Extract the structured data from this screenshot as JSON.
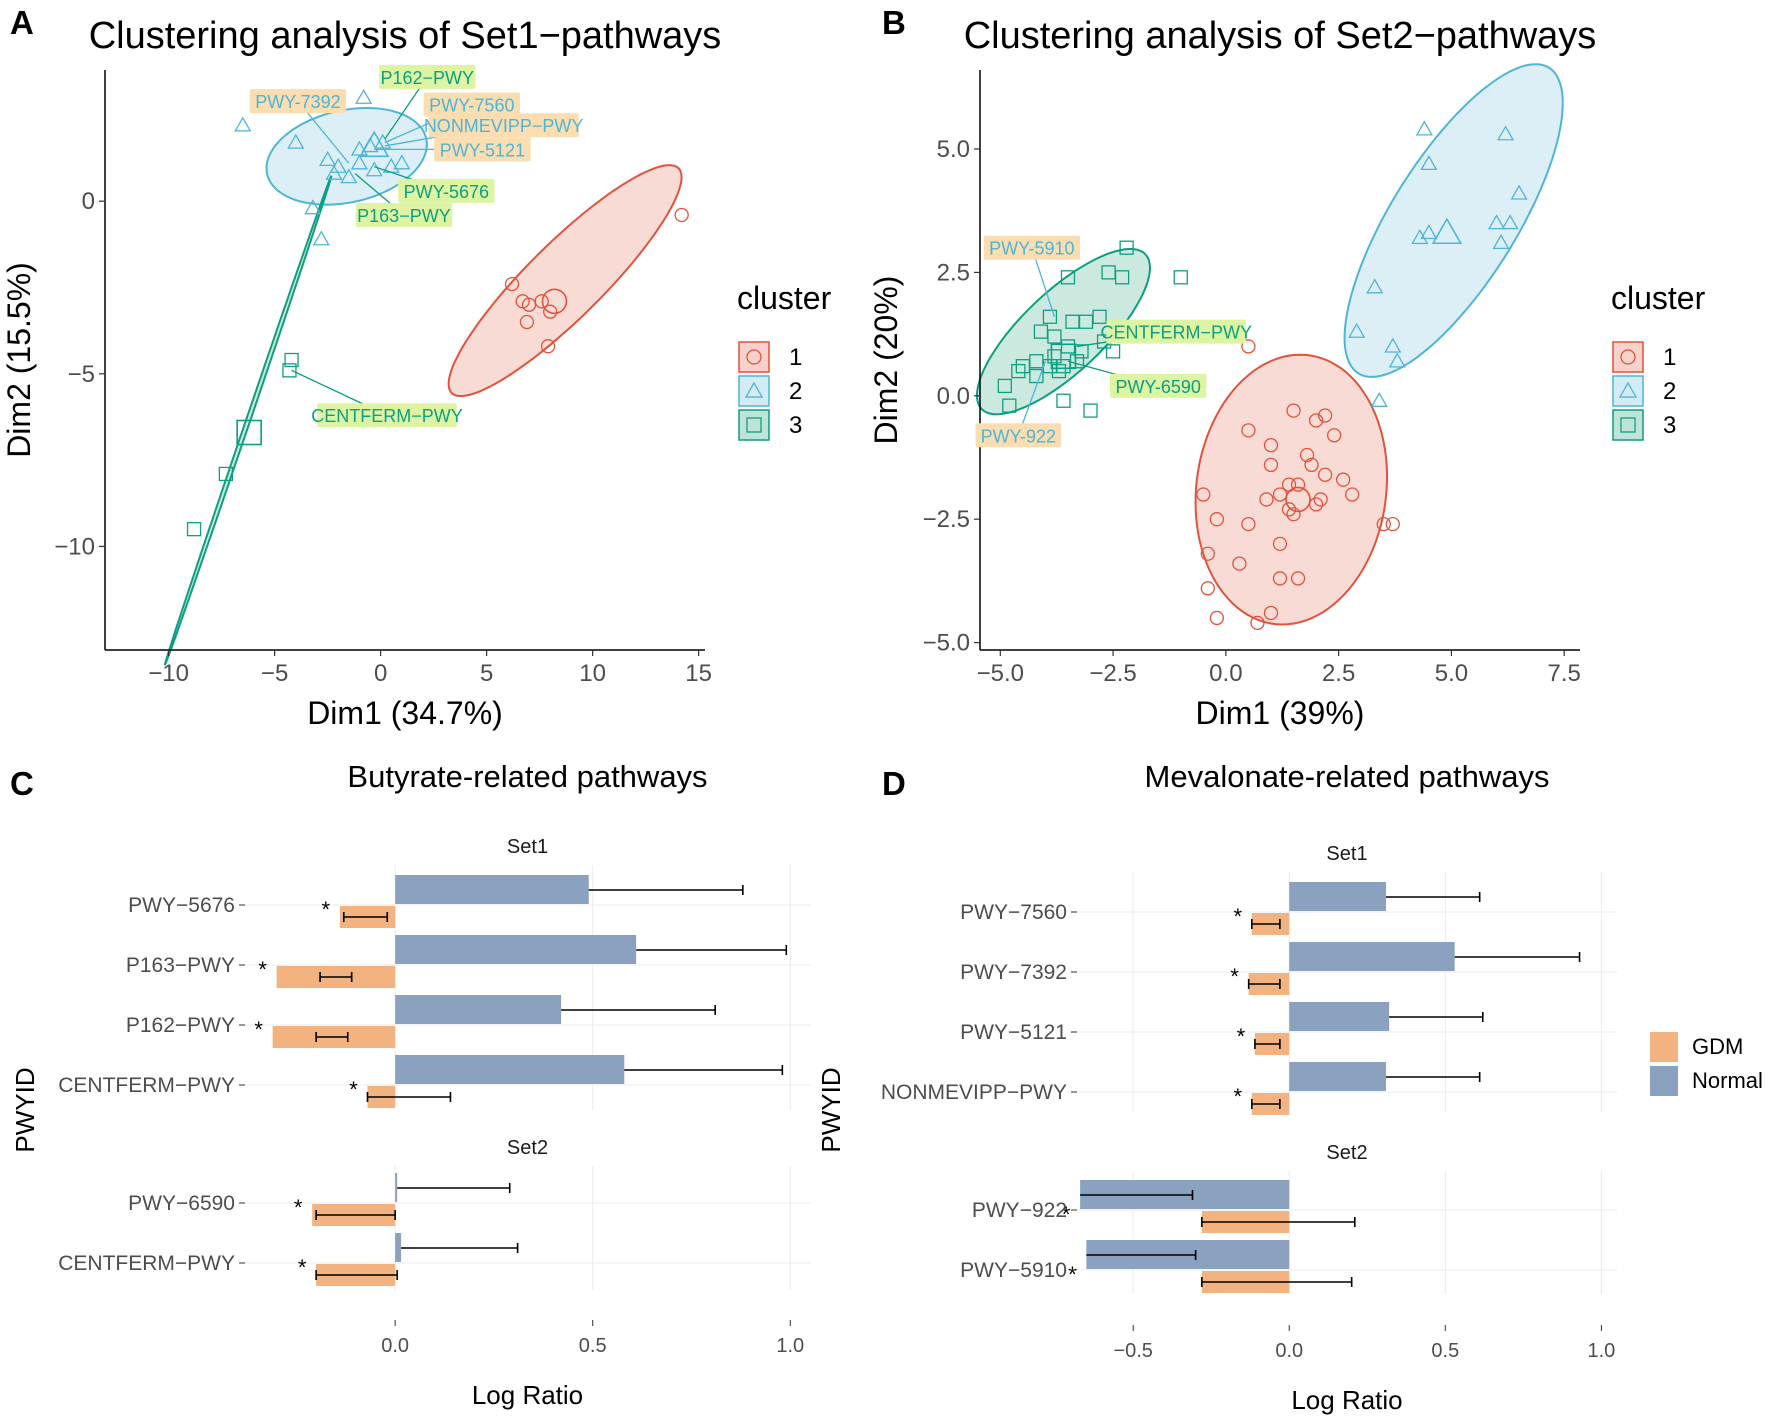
{
  "figure": {
    "panels": [
      {
        "id": "A",
        "letter": "A"
      },
      {
        "id": "B",
        "letter": "B"
      },
      {
        "id": "C",
        "letter": "C"
      },
      {
        "id": "D",
        "letter": "D"
      }
    ]
  },
  "colors": {
    "c1": "#E2523C",
    "c1_fill": "#F6D2CB",
    "c2": "#4FB5D6",
    "c2_fill": "#D3EBF4",
    "c3": "#0E9E80",
    "c3_fill": "#BFE3D8",
    "gdm": "#F2B381",
    "normal": "#8AA2BF",
    "label_orange_bg": "#FADDB1",
    "label_green_bg": "#DDF5A2",
    "grid": "#EBEBEB"
  },
  "chart_data": [
    {
      "id": "A",
      "type": "scatter",
      "title": "Clustering analysis of Set1−pathways",
      "xlabel": "Dim1 (34.7%)",
      "ylabel": "Dim2 (15.5%)",
      "xlim": [
        -13,
        15.3
      ],
      "ylim": [
        -13,
        3.8
      ],
      "xticks": [
        -10,
        -5,
        0,
        5,
        10,
        15
      ],
      "xtick_labels": [
        "−10",
        "−5",
        "0",
        "5",
        "10",
        "15"
      ],
      "yticks": [
        0,
        -5,
        -10
      ],
      "ytick_labels": [
        "0",
        "−5",
        "−10"
      ],
      "legend_title": "cluster",
      "legend_labels": [
        "1",
        "2",
        "3"
      ],
      "points": [
        {
          "cluster": 1,
          "x": [
            14.2,
            6.2,
            6.7,
            7.0,
            7.6,
            8.0,
            6.9,
            7.9
          ],
          "y": [
            -0.4,
            -2.4,
            -2.9,
            -3.0,
            -2.9,
            -3.2,
            -3.5,
            -4.2
          ]
        },
        {
          "cluster": 2,
          "x": [
            -6.5,
            -4.0,
            -2.5,
            -2.0,
            -1.0,
            -0.5,
            0.1,
            0.5,
            1.0,
            -1.5,
            -2.2,
            -1.0,
            -3.2,
            -2.8,
            -0.8,
            -0.3
          ],
          "y": [
            2.2,
            1.7,
            1.2,
            1.0,
            1.1,
            1.6,
            1.7,
            1.0,
            1.1,
            0.7,
            0.8,
            1.5,
            -0.2,
            -1.1,
            3.0,
            0.9
          ]
        },
        {
          "cluster": 3,
          "x": [
            -4.3,
            -4.2,
            -7.3,
            -8.8
          ],
          "y": [
            -4.9,
            -4.6,
            -7.9,
            -9.5
          ]
        }
      ],
      "centroids": [
        {
          "cluster": 1,
          "x": 8.2,
          "y": -2.9
        },
        {
          "cluster": 2,
          "x": -0.3,
          "y": 1.6
        },
        {
          "cluster": 3,
          "x": -6.2,
          "y": -6.7
        }
      ],
      "ellipses": [
        {
          "cluster": 1,
          "cx": 8.7,
          "cy": -2.3,
          "rx": 6.3,
          "ry": 1.3,
          "angle": 30
        },
        {
          "cluster": 2,
          "cx": -1.6,
          "cy": 1.3,
          "rx": 3.8,
          "ry": 1.35,
          "angle": 6
        },
        {
          "cluster": 3,
          "cx": -6.25,
          "cy": -6.35,
          "rx": 8.1,
          "ry": 0.09,
          "angle": 61
        }
      ],
      "annotations": [
        {
          "text": "PWY-7392",
          "bg": "orange",
          "tx": -3.9,
          "ty": 2.9,
          "px": -1.5,
          "py": 1.1
        },
        {
          "text": "P162−PWY",
          "bg": "green",
          "tx": 2.2,
          "ty": 3.6,
          "px": 0.2,
          "py": 1.8
        },
        {
          "text": "PWY-7560",
          "bg": "orange",
          "tx": 4.3,
          "ty": 2.8,
          "px": 0.2,
          "py": 1.7
        },
        {
          "text": "NONMEVIPP−PWY",
          "bg": "orange",
          "tx": 5.8,
          "ty": 2.2,
          "px": 0.2,
          "py": 1.6
        },
        {
          "text": "PWY-5121",
          "bg": "orange",
          "tx": 4.8,
          "ty": 1.5,
          "px": -0.3,
          "py": 1.5
        },
        {
          "text": "PWY-5676",
          "bg": "green",
          "tx": 3.1,
          "ty": 0.3,
          "px": -0.3,
          "py": 1.0
        },
        {
          "text": "P163−PWY",
          "bg": "green",
          "tx": 1.1,
          "ty": -0.4,
          "px": -1.2,
          "py": 0.8
        },
        {
          "text": "CENTFERM−PWY",
          "bg": "green",
          "tx": 0.3,
          "ty": -6.2,
          "px": -4.2,
          "py": -4.9
        }
      ]
    },
    {
      "id": "B",
      "type": "scatter",
      "title": "Clustering analysis of Set2−pathways",
      "xlabel": "Dim1 (39%)",
      "ylabel": "Dim2 (20%)",
      "xlim": [
        -5.45,
        7.85
      ],
      "ylim": [
        -5.15,
        6.6
      ],
      "xticks": [
        -5,
        -2.5,
        0,
        2.5,
        5,
        7.5
      ],
      "xtick_labels": [
        "−5.0",
        "−2.5",
        "0.0",
        "2.5",
        "5.0",
        "7.5"
      ],
      "yticks": [
        5,
        2.5,
        0,
        -2.5,
        -5
      ],
      "ytick_labels": [
        "5.0",
        "2.5",
        "0.0",
        "−2.5",
        "−5.0"
      ],
      "legend_title": "cluster",
      "legend_labels": [
        "1",
        "2",
        "3"
      ],
      "points": [
        {
          "cluster": 1,
          "x": [
            0.5,
            1.5,
            2.0,
            2.2,
            0.5,
            2.4,
            1.0,
            1.0,
            1.8,
            1.9,
            2.6,
            2.2,
            1.6,
            2.8,
            1.4,
            1.2,
            2.1,
            0.9,
            2.0,
            1.5,
            -0.5,
            -0.2,
            0.5,
            -0.4,
            1.2,
            1.4,
            0.3,
            1.2,
            1.6,
            3.5,
            3.7,
            -0.4,
            -0.2,
            1.0,
            0.7
          ],
          "y": [
            1.0,
            -0.3,
            -0.5,
            -0.4,
            -0.7,
            -0.8,
            -1.0,
            -1.4,
            -1.2,
            -1.4,
            -1.7,
            -1.6,
            -1.8,
            -2.0,
            -1.8,
            -2.0,
            -2.1,
            -2.1,
            -2.2,
            -2.4,
            -2.0,
            -2.5,
            -2.6,
            -3.2,
            -3.0,
            -2.3,
            -3.4,
            -3.7,
            -3.7,
            -2.6,
            -2.6,
            -3.9,
            -4.5,
            -4.4,
            -4.6
          ]
        },
        {
          "cluster": 2,
          "x": [
            4.4,
            6.2,
            4.5,
            6.5,
            6.0,
            6.3,
            4.5,
            4.3,
            6.1,
            3.3,
            2.9,
            3.7,
            3.8,
            3.4
          ],
          "y": [
            5.4,
            5.3,
            4.7,
            4.1,
            3.5,
            3.5,
            3.3,
            3.2,
            3.1,
            2.2,
            1.3,
            1.0,
            0.7,
            -0.1
          ]
        },
        {
          "cluster": 3,
          "x": [
            -2.2,
            -2.6,
            -3.5,
            -2.3,
            -1.0,
            -3.9,
            -3.4,
            -2.8,
            -4.1,
            -3.8,
            -3.5,
            -3.2,
            -2.5,
            -3.8,
            -3.3,
            -4.2,
            -3.6,
            -3.9,
            -3.7,
            -4.2,
            -4.5,
            -4.6,
            -4.9,
            -4.8,
            -3.0,
            -3.6,
            -3.1,
            -2.7
          ],
          "y": [
            3.0,
            2.5,
            2.4,
            2.4,
            2.4,
            1.6,
            1.5,
            1.6,
            1.3,
            1.2,
            1.0,
            0.9,
            0.9,
            0.8,
            0.7,
            0.7,
            0.6,
            0.6,
            0.5,
            0.4,
            0.6,
            0.5,
            0.2,
            -0.2,
            -0.3,
            -0.1,
            1.5,
            1.1
          ]
        }
      ],
      "centroids": [
        {
          "cluster": 1,
          "x": 1.6,
          "y": -2.1
        },
        {
          "cluster": 2,
          "x": 4.9,
          "y": 3.3
        },
        {
          "cluster": 3,
          "x": -3.6,
          "y": 0.8
        }
      ],
      "ellipses": [
        {
          "cluster": 1,
          "cx": 1.45,
          "cy": -1.9,
          "rx": 2.1,
          "ry": 2.75,
          "angle": -10
        },
        {
          "cluster": 2,
          "cx": 5.05,
          "cy": 3.55,
          "rx": 3.75,
          "ry": 1.35,
          "angle": 55
        },
        {
          "cluster": 3,
          "cx": -3.6,
          "cy": 1.3,
          "rx": 2.4,
          "ry": 0.85,
          "angle": 40
        }
      ],
      "annotations": [
        {
          "text": "PWY-5910",
          "bg": "orange",
          "tx": -4.3,
          "ty": 3.0,
          "px": -3.8,
          "py": 1.6
        },
        {
          "text": "CENTFERM−PWY",
          "bg": "green",
          "tx": -1.1,
          "ty": 1.3,
          "px": -3.3,
          "py": 1.0
        },
        {
          "text": "PWY-6590",
          "bg": "green",
          "tx": -1.5,
          "ty": 0.2,
          "px": -3.5,
          "py": 0.7
        },
        {
          "text": "PWY-922",
          "bg": "orange",
          "tx": -4.6,
          "ty": -0.8,
          "px": -4.0,
          "py": 0.7
        }
      ]
    },
    {
      "id": "C",
      "type": "bar",
      "orientation": "horizontal",
      "title": "Butyrate-related pathways",
      "xlabel": "Log Ratio",
      "ylabel": "PWYID",
      "xlim": [
        -0.38,
        1.05
      ],
      "xticks": [
        0,
        0.5,
        1
      ],
      "xtick_labels": [
        "0.0",
        "0.5",
        "1.0"
      ],
      "facets": [
        {
          "name": "Set1",
          "categories": [
            "PWY−5676",
            "P163−PWY",
            "P162−PWY",
            "CENTFERM−PWY"
          ],
          "normal": [
            0.49,
            0.61,
            0.42,
            0.58
          ],
          "normal_err_hi": [
            0.88,
            0.99,
            0.81,
            0.98
          ],
          "gdm": [
            -0.14,
            -0.3,
            -0.31,
            -0.07
          ],
          "gdm_err_lo": [
            -0.13,
            -0.19,
            -0.2,
            -0.07
          ],
          "gdm_err_hi": [
            -0.02,
            -0.11,
            -0.12,
            0.14
          ],
          "sig": [
            "*",
            "*",
            "*",
            "*"
          ]
        },
        {
          "name": "Set2",
          "categories": [
            "PWY−6590",
            "CENTFERM−PWY"
          ],
          "normal": [
            0.005,
            0.015
          ],
          "normal_err_hi": [
            0.29,
            0.31
          ],
          "gdm": [
            -0.21,
            -0.2
          ],
          "gdm_err_lo": [
            -0.2,
            -0.2
          ],
          "gdm_err_hi": [
            0.0,
            0.005
          ],
          "sig": [
            "*",
            "*"
          ]
        }
      ]
    },
    {
      "id": "D",
      "type": "bar",
      "orientation": "horizontal",
      "title": "Mevalonate-related pathways",
      "xlabel": "Log Ratio",
      "ylabel": "PWYID",
      "xlim": [
        -0.68,
        1.05
      ],
      "xticks": [
        -0.5,
        0,
        0.5,
        1
      ],
      "xtick_labels": [
        "−0.5",
        "0.0",
        "0.5",
        "1.0"
      ],
      "legend": [
        {
          "name": "GDM"
        },
        {
          "name": "Normal"
        }
      ],
      "facets": [
        {
          "name": "Set1",
          "categories": [
            "PWY−7560",
            "PWY−7392",
            "PWY−5121",
            "NONMEVIPP−PWY"
          ],
          "normal": [
            0.31,
            0.53,
            0.32,
            0.31
          ],
          "normal_err_hi": [
            0.61,
            0.93,
            0.62,
            0.61
          ],
          "gdm": [
            -0.12,
            -0.13,
            -0.11,
            -0.12
          ],
          "gdm_err_lo": [
            -0.12,
            -0.13,
            -0.11,
            -0.12
          ],
          "gdm_err_hi": [
            -0.03,
            -0.03,
            -0.03,
            -0.03
          ],
          "sig": [
            "*",
            "*",
            "*",
            "*"
          ]
        },
        {
          "name": "Set2",
          "categories": [
            "PWY−922",
            "PWY−5910"
          ],
          "normal": [
            -0.67,
            -0.65
          ],
          "normal_err_lo": [
            -0.67,
            -0.65
          ],
          "normal_err_hi": [
            -0.31,
            -0.3
          ],
          "gdm": [
            -0.28,
            -0.28
          ],
          "gdm_err_lo": [
            -0.28,
            -0.28
          ],
          "gdm_err_hi": [
            0.21,
            0.2
          ],
          "sig": [
            "*",
            "*"
          ]
        }
      ]
    }
  ]
}
